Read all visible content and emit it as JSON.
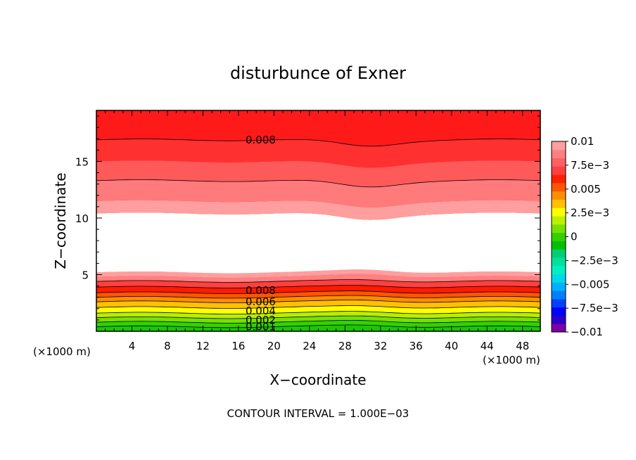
{
  "chart_data": {
    "type": "heatmap",
    "title": "disturbunce of Exner",
    "xlabel": "X−coordinate",
    "ylabel": "Z−coordinate",
    "x_unit_left": "(×1000 m)",
    "x_unit_right": "(×1000 m)",
    "xlim": [
      0,
      50
    ],
    "ylim": [
      0,
      19.5
    ],
    "x_ticks": [
      "4",
      "8",
      "12",
      "16",
      "20",
      "24",
      "28",
      "32",
      "36",
      "40",
      "44",
      "48"
    ],
    "y_ticks": [
      "5",
      "10",
      "15"
    ],
    "contour_interval_label": "CONTOUR INTERVAL = 1.000E−03",
    "colorbar": {
      "labels": [
        "0.01",
        "7.5e−3",
        "0.005",
        "2.5e−3",
        "0",
        "−2.5e−3",
        "−0.005",
        "−7.5e−3",
        "−0.01"
      ],
      "levels": [
        -0.01,
        -0.009,
        -0.008,
        -0.007,
        -0.006,
        -0.005,
        -0.004,
        -0.003,
        -0.002,
        -0.001,
        0,
        0.001,
        0.002,
        0.003,
        0.004,
        0.005,
        0.006,
        0.007,
        0.008,
        0.009,
        0.01
      ],
      "colors": [
        "#7b00a8",
        "#2a00c8",
        "#0000ff",
        "#0040ff",
        "#0080ff",
        "#00b0ff",
        "#00d8e8",
        "#00f0c0",
        "#00e0a0",
        "#00d070",
        "#00c000",
        "#33d000",
        "#77e000",
        "#bbf000",
        "#ffff00",
        "#ffc000",
        "#ff8c00",
        "#ff5500",
        "#ff2000",
        "#ff4040",
        "#ff6060",
        "#ff8080",
        "#ff9e9e"
      ]
    },
    "contour_labels": [
      {
        "text": "0.008",
        "x": 18.5,
        "z": 16.9
      },
      {
        "text": "0.008",
        "x": 18.5,
        "z": 3.6
      },
      {
        "text": "0.006",
        "x": 18.5,
        "z": 2.6
      },
      {
        "text": "0.004",
        "x": 18.5,
        "z": 1.8
      },
      {
        "text": "0.002",
        "x": 18.5,
        "z": 1.0
      },
      {
        "text": "0.001",
        "x": 18.5,
        "z": 0.4
      }
    ],
    "bands": [
      {
        "level": 0.001,
        "color": "#19c800",
        "z": 0.0
      },
      {
        "level": 0.002,
        "color": "#33d200",
        "z": 0.4
      },
      {
        "level": 0.003,
        "color": "#77e000",
        "z": 0.8
      },
      {
        "level": 0.004,
        "color": "#b8ee00",
        "z": 1.2
      },
      {
        "level": 0.005,
        "color": "#ffff00",
        "z": 1.6
      },
      {
        "level": 0.006,
        "color": "#ffc000",
        "z": 2.1
      },
      {
        "level": 0.007,
        "color": "#ff8c00",
        "z": 2.6
      },
      {
        "level": 0.008,
        "color": "#ff5500",
        "z": 3.0
      },
      {
        "level": 0.009,
        "color": "#ff1a00",
        "z": 3.4
      },
      {
        "level": 0.0095,
        "color": "#ff4040",
        "z": 3.9
      },
      {
        "level": 0.0098,
        "color": "#ff8080",
        "z": 4.4
      },
      {
        "level": 0.0099,
        "color": "#ff9e9e",
        "z": 4.8
      },
      {
        "level": 0.01,
        "color": "#ffffff",
        "z": 5.2
      },
      {
        "level": 0.0099,
        "color": "#ff9e9e",
        "z": 10.4
      },
      {
        "level": 0.0098,
        "color": "#ff7a7a",
        "z": 11.5
      },
      {
        "level": 0.0095,
        "color": "#ff5a5a",
        "z": 13.3
      },
      {
        "level": 0.009,
        "color": "#ff3030",
        "z": 15.0
      },
      {
        "level": 0.0085,
        "color": "#ff1a1a",
        "z": 16.9
      }
    ]
  }
}
